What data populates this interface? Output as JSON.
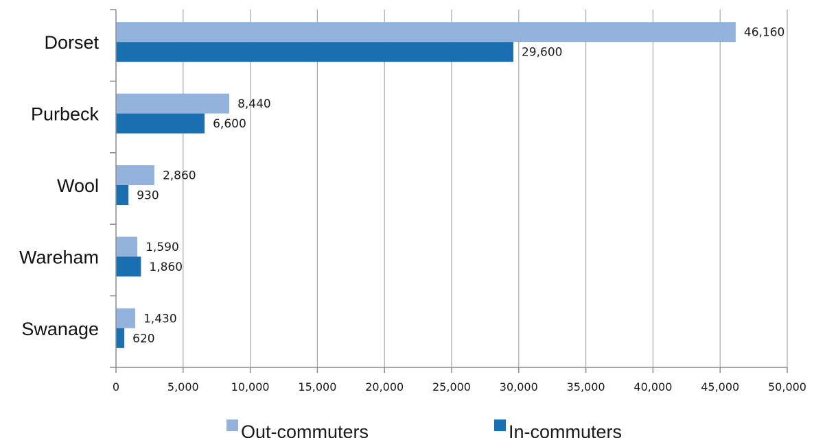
{
  "chart_data": {
    "type": "bar",
    "orientation": "horizontal",
    "categories": [
      "Dorset",
      "Purbeck",
      "Wool",
      "Wareham",
      "Swanage"
    ],
    "series": [
      {
        "name": "Out-commuters",
        "values": [
          46160,
          8440,
          2860,
          1590,
          1430
        ],
        "value_labels": [
          "46,160",
          "8,440",
          "2,860",
          "1,590",
          "1,430"
        ]
      },
      {
        "name": "In-commuters",
        "values": [
          29600,
          6600,
          930,
          1860,
          620
        ],
        "value_labels": [
          "29,600",
          "6,600",
          "930",
          "1,860",
          "620"
        ]
      }
    ],
    "xlim": [
      0,
      50000
    ],
    "x_ticks": [
      0,
      5000,
      10000,
      15000,
      20000,
      25000,
      30000,
      35000,
      40000,
      45000,
      50000
    ],
    "x_tick_labels": [
      "0",
      "5,000",
      "10,000",
      "15,000",
      "20,000",
      "25,000",
      "30,000",
      "35,000",
      "40,000",
      "45,000",
      "50,000"
    ],
    "grid": "vertical",
    "legend_position": "bottom",
    "colors": {
      "Out-commuters": "#93b3dc",
      "In-commuters": "#1a6fb0",
      "grid": "#a6a6a6",
      "axis": "#8c8c8c"
    }
  }
}
